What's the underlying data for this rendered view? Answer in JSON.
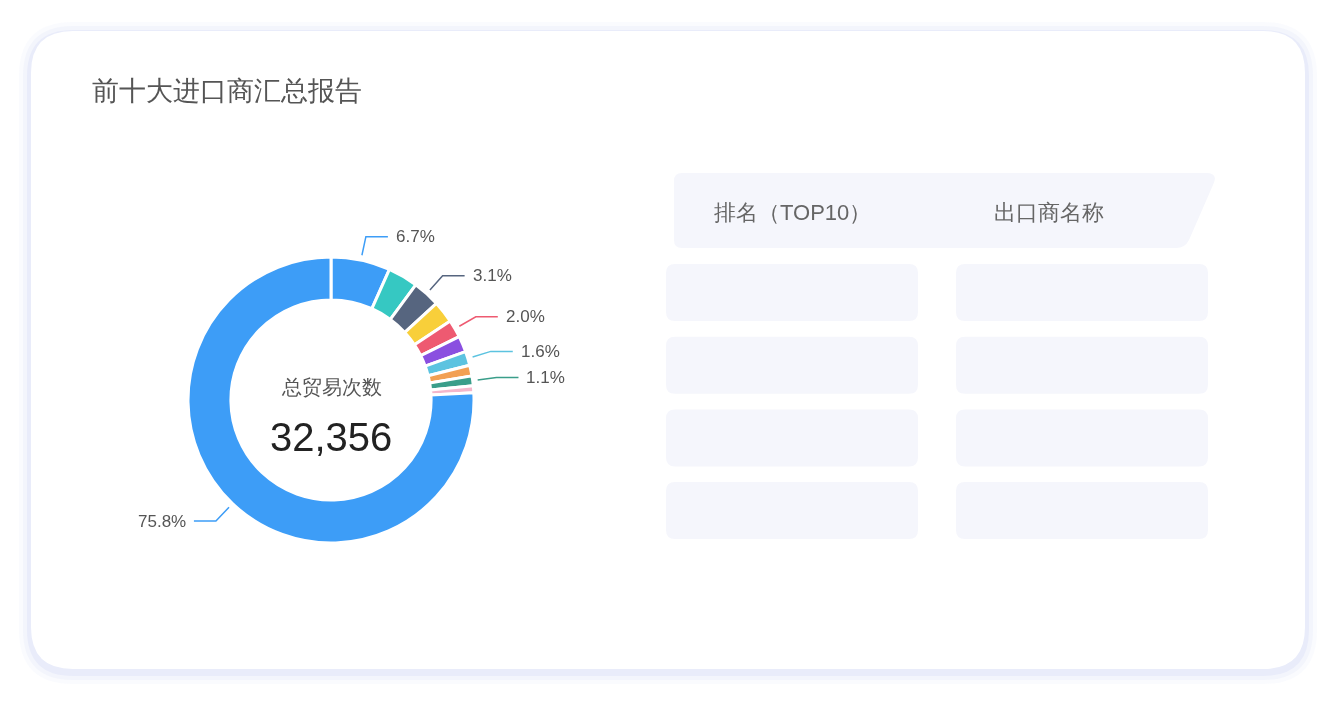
{
  "chart_data": [
    {
      "type": "donut",
      "title": "前十大进口商汇总报告",
      "categories": [
        null,
        null,
        null,
        null,
        null,
        null,
        null,
        null,
        null,
        null,
        null
      ],
      "values": [
        6.7,
        3.4,
        3.1,
        2.5,
        2.0,
        1.8,
        1.6,
        1.2,
        1.1,
        0.8,
        75.8
      ],
      "colors": [
        "#3d9df7",
        "#36c8c2",
        "#56657f",
        "#f8cf3a",
        "#ee5a71",
        "#8a4fe0",
        "#5cc3e0",
        "#f2a053",
        "#3a9e8a",
        "#f4b6cb",
        "#3d9df7"
      ],
      "value_labels": [
        "6.7%",
        null,
        "3.1%",
        null,
        "2.0%",
        null,
        "1.6%",
        null,
        "1.1%",
        null,
        "75.8%"
      ],
      "annotations": [
        "总贸易次数",
        "32,356"
      ]
    },
    {
      "type": "other",
      "categories": [
        "排名（TOP10）",
        "出口商名称"
      ],
      "cells": [
        [
          null,
          null
        ],
        [
          null,
          null
        ],
        [
          null,
          null
        ],
        [
          null,
          null
        ]
      ]
    }
  ]
}
